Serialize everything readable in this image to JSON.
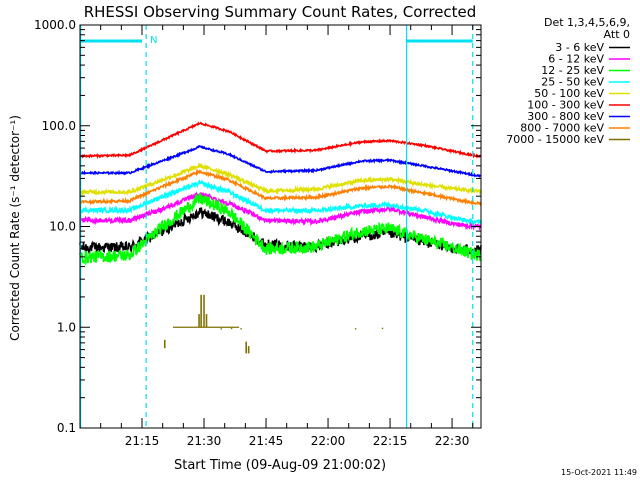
{
  "chart_data": {
    "type": "line",
    "title": "RHESSI Observing Summary Count Rates, Corrected",
    "xlabel": "Start Time (09-Aug-09 21:00:02)",
    "ylabel": "Corrected Count Rate (s⁻¹ detector⁻¹)",
    "yscale": "log",
    "ylim": [
      0.1,
      1000.0
    ],
    "xlim_minutes": [
      0,
      97
    ],
    "x_tick_minutes": [
      15,
      30,
      45,
      60,
      75,
      90
    ],
    "x_tick_labels": [
      "21:15",
      "21:30",
      "21:45",
      "22:00",
      "22:15",
      "22:30"
    ],
    "y_tick_values": [
      0.1,
      1.0,
      10.0,
      100.0,
      1000.0
    ],
    "y_tick_labels": [
      "0.1",
      "1.0",
      "10.0",
      "100.0",
      "1000.0"
    ],
    "legend_header": [
      "Det 1,3,4,5,6,9,",
      "Att 0"
    ],
    "legend_position": "right",
    "timestamp": "15-Oct-2021 11:49",
    "flag_label": "N",
    "flag_color": "#00e0f0",
    "night_boundaries_minutes": [
      0,
      16,
      79
    ],
    "saa_boundaries_minutes": [
      95
    ],
    "flag_segments_minutes": [
      [
        0,
        15
      ],
      [
        79,
        95
      ]
    ],
    "series": [
      {
        "name": "3 - 6 keV",
        "color": "#000000",
        "keypoints": [
          [
            0,
            6.2
          ],
          [
            12,
            6.2
          ],
          [
            20,
            9
          ],
          [
            29,
            14
          ],
          [
            36,
            11
          ],
          [
            45,
            6.6
          ],
          [
            57,
            6.3
          ],
          [
            68,
            8
          ],
          [
            75,
            8.5
          ],
          [
            83,
            7.2
          ],
          [
            91,
            6
          ],
          [
            96,
            5.8
          ]
        ],
        "noise": 0.12
      },
      {
        "name": "6 - 12 keV",
        "color": "#ff00ff",
        "keypoints": [
          [
            0,
            11.5
          ],
          [
            12,
            11.5
          ],
          [
            20,
            15
          ],
          [
            29,
            21
          ],
          [
            36,
            17
          ],
          [
            45,
            11.5
          ],
          [
            57,
            11.2
          ],
          [
            68,
            14
          ],
          [
            75,
            15
          ],
          [
            83,
            12.5
          ],
          [
            91,
            10.5
          ],
          [
            96,
            10
          ]
        ],
        "noise": 0.05
      },
      {
        "name": "12 - 25 keV",
        "color": "#00ff00",
        "keypoints": [
          [
            0,
            4.9
          ],
          [
            12,
            5.2
          ],
          [
            20,
            10
          ],
          [
            29,
            19
          ],
          [
            36,
            14
          ],
          [
            45,
            6
          ],
          [
            57,
            6.3
          ],
          [
            68,
            9
          ],
          [
            75,
            9.5
          ],
          [
            83,
            7.5
          ],
          [
            91,
            6
          ],
          [
            96,
            5.2
          ]
        ],
        "noise": 0.14
      },
      {
        "name": "25 - 50 keV",
        "color": "#00ffff",
        "keypoints": [
          [
            0,
            14.5
          ],
          [
            12,
            14.5
          ],
          [
            20,
            20
          ],
          [
            29,
            27
          ],
          [
            36,
            22
          ],
          [
            45,
            14.5
          ],
          [
            57,
            14.3
          ],
          [
            68,
            16
          ],
          [
            75,
            16.5
          ],
          [
            83,
            14.5
          ],
          [
            91,
            12
          ],
          [
            96,
            11
          ]
        ],
        "noise": 0.05
      },
      {
        "name": "50 - 100 keV",
        "color": "#e0e000",
        "keypoints": [
          [
            0,
            22
          ],
          [
            12,
            22
          ],
          [
            20,
            29
          ],
          [
            29,
            40
          ],
          [
            36,
            33
          ],
          [
            45,
            22.5
          ],
          [
            57,
            23.5
          ],
          [
            68,
            28.5
          ],
          [
            75,
            29.5
          ],
          [
            83,
            26
          ],
          [
            91,
            23.5
          ],
          [
            96,
            22.5
          ]
        ],
        "noise": 0.04
      },
      {
        "name": "100 - 300 keV",
        "color": "#ff0000",
        "keypoints": [
          [
            0,
            50
          ],
          [
            12,
            51
          ],
          [
            20,
            72
          ],
          [
            29,
            106
          ],
          [
            36,
            88
          ],
          [
            45,
            56
          ],
          [
            57,
            57
          ],
          [
            68,
            69
          ],
          [
            75,
            71
          ],
          [
            83,
            64
          ],
          [
            91,
            55
          ],
          [
            96,
            50
          ]
        ],
        "noise": 0.02
      },
      {
        "name": "300 - 800 keV",
        "color": "#0000ff",
        "keypoints": [
          [
            0,
            34
          ],
          [
            12,
            34
          ],
          [
            20,
            45
          ],
          [
            29,
            62
          ],
          [
            36,
            52
          ],
          [
            45,
            35
          ],
          [
            57,
            36
          ],
          [
            68,
            44.5
          ],
          [
            75,
            45.5
          ],
          [
            83,
            40
          ],
          [
            91,
            35
          ],
          [
            96,
            32
          ]
        ],
        "noise": 0.02
      },
      {
        "name": "800 - 7000 keV",
        "color": "#ff8000",
        "keypoints": [
          [
            0,
            17.5
          ],
          [
            12,
            18
          ],
          [
            20,
            25
          ],
          [
            29,
            35
          ],
          [
            36,
            29
          ],
          [
            45,
            19
          ],
          [
            57,
            19.5
          ],
          [
            68,
            24
          ],
          [
            75,
            25
          ],
          [
            83,
            21.5
          ],
          [
            91,
            18.5
          ],
          [
            96,
            17
          ]
        ],
        "noise": 0.03
      },
      {
        "name": "7000 - 15000 keV",
        "color": "#807000",
        "keypoints": [],
        "noise": 0
      }
    ]
  }
}
